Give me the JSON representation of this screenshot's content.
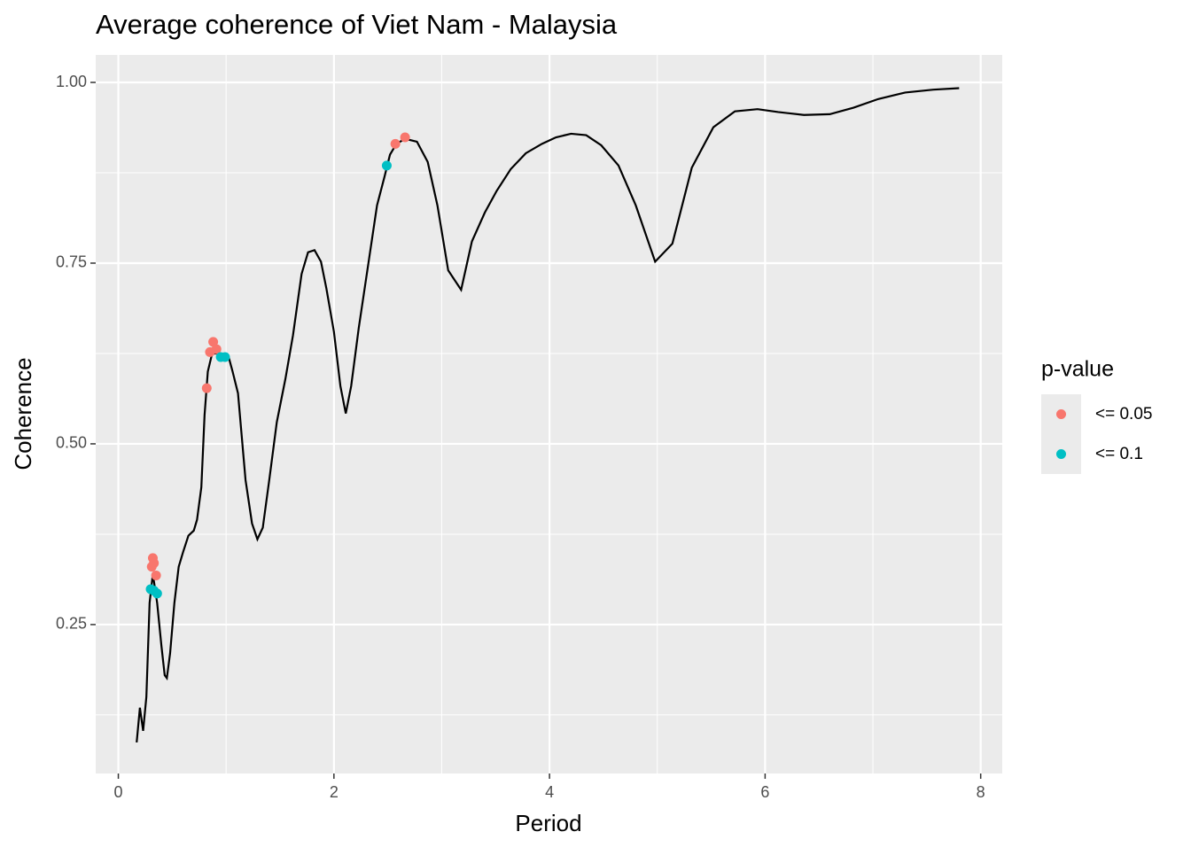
{
  "chart_data": {
    "type": "line",
    "title": "Average coherence of Viet Nam - Malaysia",
    "x_label": "Period",
    "y_label": "Coherence",
    "xlim": [
      -0.21,
      8.2
    ],
    "ylim": [
      0.044,
      1.038
    ],
    "xticks": [
      0,
      2,
      4,
      6,
      8
    ],
    "yticks": [
      {
        "value": 0.25,
        "label": "0.25"
      },
      {
        "value": 0.5,
        "label": "0.50"
      },
      0.75,
      {
        "value": 1,
        "label": "1.00"
      }
    ],
    "grid": true,
    "legend_title": "p-value",
    "legend_position": "right",
    "series": [
      {
        "type": "line",
        "color": "#000000",
        "x": [
          0.17,
          0.2,
          0.23,
          0.26,
          0.29,
          0.32,
          0.36,
          0.4,
          0.43,
          0.45,
          0.48,
          0.52,
          0.56,
          0.6,
          0.65,
          0.7,
          0.73,
          0.77,
          0.8,
          0.83,
          0.87,
          0.95,
          1.02,
          1.06,
          1.11,
          1.18,
          1.24,
          1.29,
          1.34,
          1.4,
          1.47,
          1.55,
          1.62,
          1.7,
          1.76,
          1.82,
          1.88,
          1.93,
          2.0,
          2.06,
          2.11,
          2.16,
          2.23,
          2.32,
          2.4,
          2.47,
          2.52,
          2.58,
          2.66,
          2.77,
          2.87,
          2.96,
          3.06,
          3.18,
          3.28,
          3.4,
          3.51,
          3.64,
          3.78,
          3.93,
          4.06,
          4.2,
          4.34,
          4.48,
          4.64,
          4.8,
          4.98,
          5.14,
          5.32,
          5.52,
          5.72,
          5.93,
          6.12,
          6.36,
          6.6,
          6.82,
          7.05,
          7.3,
          7.56,
          7.8
        ],
        "values": [
          0.087,
          0.135,
          0.103,
          0.15,
          0.28,
          0.32,
          0.28,
          0.22,
          0.18,
          0.176,
          0.21,
          0.28,
          0.33,
          0.35,
          0.373,
          0.38,
          0.395,
          0.44,
          0.54,
          0.6,
          0.625,
          0.625,
          0.622,
          0.6,
          0.57,
          0.45,
          0.39,
          0.368,
          0.384,
          0.45,
          0.53,
          0.59,
          0.65,
          0.735,
          0.765,
          0.768,
          0.752,
          0.715,
          0.655,
          0.58,
          0.542,
          0.58,
          0.66,
          0.75,
          0.83,
          0.87,
          0.9,
          0.915,
          0.922,
          0.918,
          0.89,
          0.83,
          0.74,
          0.713,
          0.78,
          0.82,
          0.85,
          0.88,
          0.902,
          0.915,
          0.924,
          0.929,
          0.927,
          0.913,
          0.885,
          0.83,
          0.752,
          0.777,
          0.882,
          0.938,
          0.96,
          0.963,
          0.959,
          0.955,
          0.956,
          0.965,
          0.977,
          0.986,
          0.99,
          0.992
        ]
      },
      {
        "type": "scatter",
        "name": "<= 0.05",
        "color": "#F8766D",
        "x": [
          0.32,
          0.31,
          0.33,
          0.35,
          0.82,
          0.85,
          0.88,
          0.91,
          2.57,
          2.66
        ],
        "values": [
          0.342,
          0.33,
          0.335,
          0.318,
          0.577,
          0.627,
          0.641,
          0.631,
          0.915,
          0.924
        ]
      },
      {
        "type": "scatter",
        "name": "<= 0.1",
        "color": "#00BFC4",
        "x": [
          0.3,
          0.36,
          0.33,
          0.95,
          0.99,
          2.49
        ],
        "values": [
          0.299,
          0.293,
          0.297,
          0.62,
          0.62,
          0.885
        ]
      }
    ]
  }
}
